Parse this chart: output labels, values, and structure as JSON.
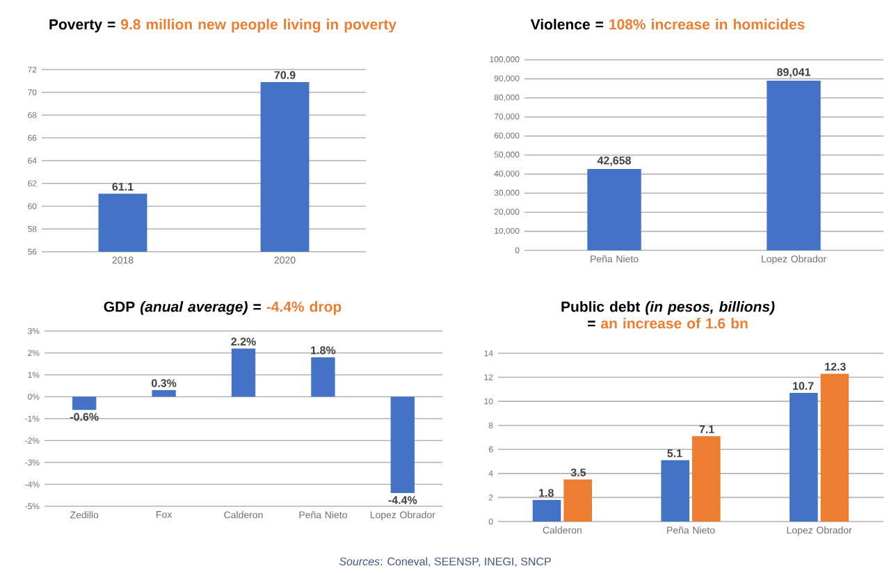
{
  "chart_data": [
    {
      "type": "bar",
      "title": "Poverty =",
      "subtitle": "9.8 million new people living in poverty",
      "categories": [
        "2018",
        "2020"
      ],
      "values": [
        61.1,
        70.9
      ],
      "color": "#4472c4",
      "ylim": [
        56,
        72
      ],
      "yticks": [
        56,
        58,
        60,
        62,
        64,
        66,
        68,
        70,
        72
      ],
      "grid": "y",
      "data_labels": true
    },
    {
      "type": "bar",
      "title": "Violence =",
      "subtitle": "108% increase in homicides",
      "categories": [
        "Peña Nieto",
        "Lopez Obrador"
      ],
      "values": [
        42658,
        89041
      ],
      "value_labels": [
        "42,658",
        "89,041"
      ],
      "color": "#4472c4",
      "ylim": [
        0,
        100000
      ],
      "yticks": [
        0,
        {
          "value": 10000,
          "label": "10,000"
        },
        {
          "value": 20000,
          "label": "20,000"
        },
        {
          "value": 30000,
          "label": "30,000"
        },
        {
          "value": 40000,
          "label": "40,000"
        },
        {
          "value": 50000,
          "label": "50,000"
        },
        {
          "value": 60000,
          "label": "60,000"
        },
        {
          "value": 70000,
          "label": "70,000"
        },
        {
          "value": 80000,
          "label": "80,000"
        },
        {
          "value": 90000,
          "label": "90,000"
        },
        {
          "value": 100000,
          "label": "100,000"
        }
      ],
      "grid": "y"
    },
    {
      "type": "bar",
      "title": "GDP *(anual average)* =",
      "subtitle": "-4.4% drop",
      "categories": [
        "Zedillo",
        "Fox",
        "Calderon",
        "Peña Nieto",
        "Lopez Obrador"
      ],
      "values": [
        -0.6,
        0.3,
        2.2,
        1.8,
        -4.4
      ],
      "value_labels": [
        "-0.6%",
        "0.3%",
        "2.2%",
        "1.8%",
        "-4.4%"
      ],
      "color": "#4472c4",
      "ylim": [
        -5,
        3
      ],
      "yticks": [
        {
          "value": -5,
          "label": "-5%"
        },
        {
          "value": -4,
          "label": "-4%"
        },
        {
          "value": -3,
          "label": "-3%"
        },
        {
          "value": -2,
          "label": "-2%"
        },
        {
          "value": -1,
          "label": "-1%"
        },
        {
          "value": 0,
          "label": "0%"
        },
        {
          "value": 1,
          "label": "1%"
        },
        {
          "value": 2,
          "label": "2%"
        },
        {
          "value": 3,
          "label": "3%"
        }
      ],
      "grid": "y"
    },
    {
      "type": "bar",
      "title": "Public debt *(in pesos, billions)* =",
      "subtitle": "an increase of 1.6 bn",
      "categories": [
        "Calderon",
        "Peña Nieto",
        "Lopez Obrador"
      ],
      "series": [
        {
          "color": "#4472c4",
          "values": [
            1.8,
            5.1,
            10.7
          ]
        },
        {
          "color": "#ed7d31",
          "values": [
            3.5,
            7.1,
            12.3
          ]
        }
      ],
      "ylim": [
        0,
        14
      ],
      "yticks": [
        0,
        2,
        4,
        6,
        8,
        10,
        12,
        14
      ],
      "grid": "y",
      "data_labels": true,
      "annotations": [
        "*Sources*: Coneval, SEENSP, INEGI, SNCP"
      ]
    }
  ]
}
